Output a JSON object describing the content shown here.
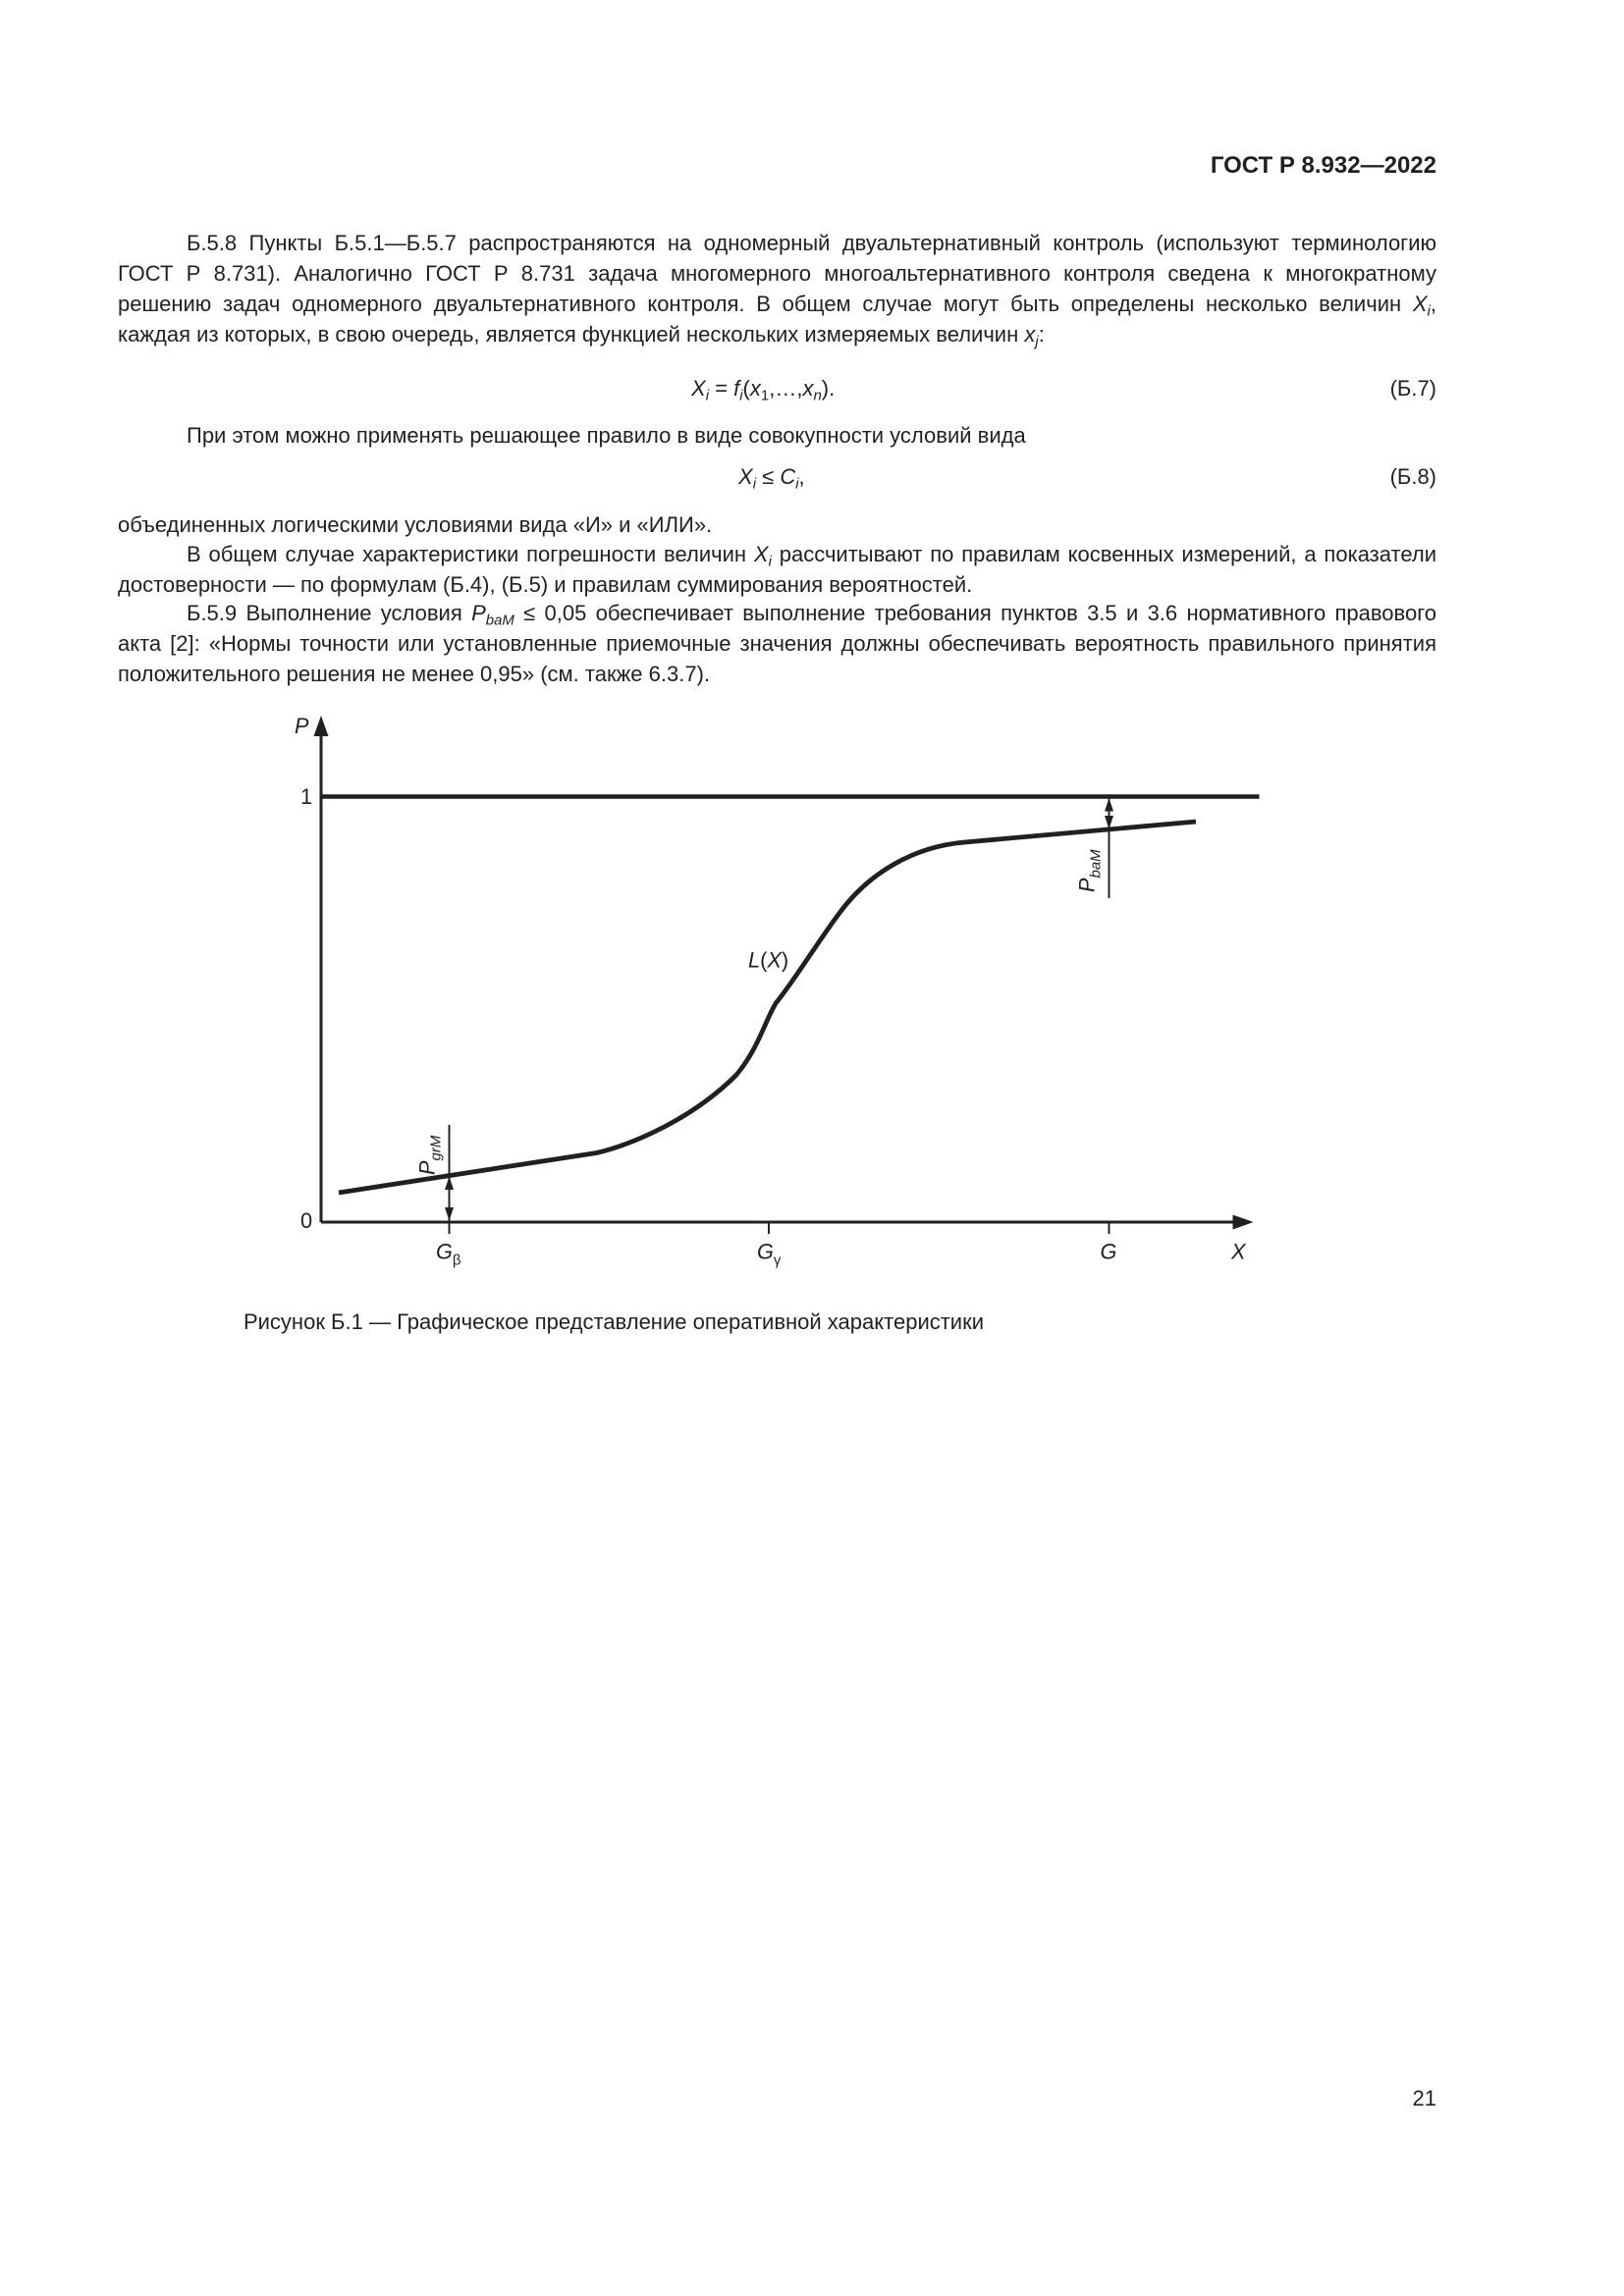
{
  "header": {
    "title": "ГОСТ Р 8.932—2022"
  },
  "body": {
    "p1": [
      "Б.5.8 Пункты Б.5.1—Б.5.7 распространяются на одномерный двуальтернативный контроль (используют терминологию ГОСТ Р 8.731). Аналогично ГОСТ Р 8.731 задача многомерного многоальтернативного контроля сведена к многократному решению задач одномерного двуальтернативного контроля. В общем случае могут быть определены несколько величин ",
      "X",
      "i",
      ", каждая из которых, в свою очередь, является функцией нескольких измеряемых величин ",
      "x",
      "j",
      ":"
    ],
    "formula_b7": {
      "parts": [
        "X",
        "i",
        " = ",
        "f",
        "i",
        "(",
        "x",
        "1",
        ",…,",
        "x",
        "n",
        ")."
      ],
      "number": "(Б.7)"
    },
    "p2": "При этом можно применять решающее правило в виде совокупности условий вида",
    "formula_b8": {
      "parts": [
        "X",
        "i",
        " ≤ ",
        "C",
        "i",
        ","
      ],
      "number": "(Б.8)"
    },
    "p3": "объединенных логическими условиями вида «И» и «ИЛИ».",
    "p4": [
      "В общем случае характеристики погрешности величин ",
      "X",
      "i",
      " рассчитывают по правилам косвенных измерений, а показатели достоверности — по формулам (Б.4), (Б.5) и правилам суммирования вероятностей."
    ],
    "p5": [
      "Б.5.9 Выполнение условия ",
      "P",
      "baM",
      " ≤ 0,05 обеспечивает выполнение требования пунктов 3.5 и 3.6 нормативного правового акта [2]: «Нормы точности или установленные приемочные значения должны обеспечивать вероятность правильного принятия положительного решения не менее 0,95» (см. также 6.3.7)."
    ]
  },
  "figure": {
    "y_axis_label": "P",
    "x_axis_label": "X",
    "y_tick_1": "1",
    "y_tick_0": "0",
    "curve_label": [
      "L",
      "(",
      "X",
      ")"
    ],
    "p_grm": [
      "P",
      "grM"
    ],
    "p_bam": [
      "P",
      "baM"
    ],
    "g_beta": [
      "G",
      "β"
    ],
    "g_gamma": [
      "G",
      "γ"
    ],
    "g": "G",
    "caption": "Рисунок Б.1 — Графическое представление оперативной характеристики"
  },
  "footer": {
    "page_number": "21"
  }
}
